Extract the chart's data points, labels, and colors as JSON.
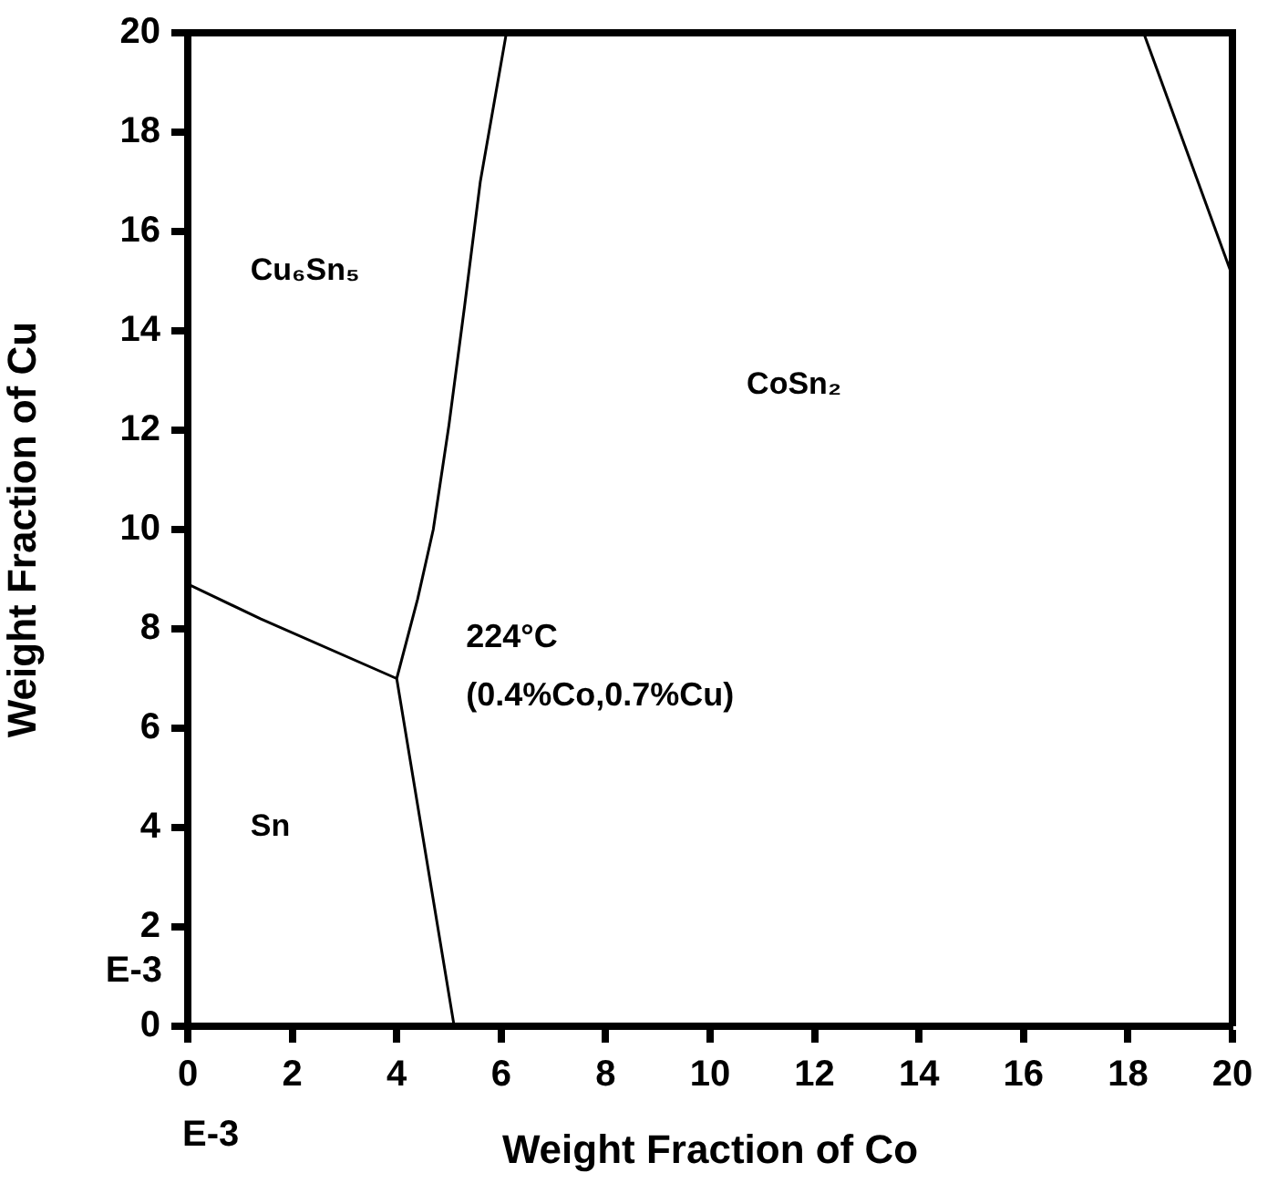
{
  "chart_data": {
    "type": "line",
    "xlabel": "Weight Fraction of Co",
    "ylabel": "Weight Fraction of Cu",
    "xlim": [
      0,
      20
    ],
    "ylim": [
      0,
      20
    ],
    "xticks": [
      0,
      2,
      4,
      6,
      8,
      10,
      12,
      14,
      16,
      18,
      20
    ],
    "yticks": [
      0,
      2,
      4,
      6,
      8,
      10,
      12,
      14,
      16,
      18,
      20
    ],
    "grid": false,
    "legend": false,
    "marker": "none",
    "line_style": "solid",
    "series": [
      {
        "color": "#000000",
        "x": [
          0,
          1.4,
          4.0
        ],
        "values": [
          8.9,
          8.2,
          7.0
        ]
      },
      {
        "color": "#000000",
        "x": [
          5.1,
          4.0,
          4.4,
          4.7,
          5.0,
          5.3,
          5.6,
          6.1
        ],
        "values": [
          0,
          7.0,
          8.6,
          10,
          12.1,
          14.5,
          17,
          20
        ]
      },
      {
        "color": "#000000",
        "x": [
          18.3,
          20
        ],
        "values": [
          20,
          15.1
        ]
      }
    ],
    "annotations": [
      "Cu₆Sn₅",
      "CoSn₂",
      {
        "text": "224°C",
        "x": 4.0,
        "y": 7.0
      },
      {
        "text": "(0.4%Co,0.7%Cu)",
        "x": 4.0,
        "y": 7.0
      },
      "Sn",
      "E-3",
      "E-3"
    ]
  }
}
